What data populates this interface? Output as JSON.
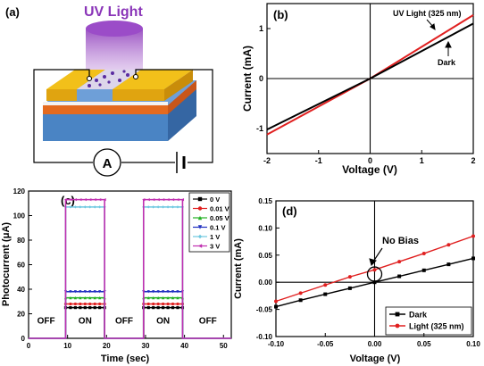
{
  "panels": {
    "a": {
      "label": "(a)",
      "light_label": "UV Light",
      "meter_label": "A",
      "colors": {
        "light": "#8a35b8",
        "gold": "#f2c01a",
        "orange": "#e46a1e",
        "blue": "#4a84c4",
        "spark": "#5a2ca0"
      }
    },
    "b": {
      "label": "(b)"
    },
    "c": {
      "label": "(c)",
      "state_labels": [
        "OFF",
        "ON",
        "OFF",
        "ON",
        "OFF"
      ]
    },
    "d": {
      "label": "(d)",
      "annotation": "No Bias"
    }
  },
  "chart_data": [
    {
      "panel": "b",
      "type": "line",
      "xlabel": "Voltage (V)",
      "ylabel": "Current (mA)",
      "xlim": [
        -2,
        2
      ],
      "ylim": [
        -1.5,
        1.5
      ],
      "xticks": [
        -2,
        -1,
        0,
        1,
        2
      ],
      "yticks": [
        -1,
        0,
        1
      ],
      "annotations": [
        "UV Light (325 nm)",
        "Dark"
      ],
      "series": [
        {
          "name": "UV Light (325 nm)",
          "color": "#e02020",
          "x": [
            -2,
            0,
            2
          ],
          "y": [
            -1.12,
            0,
            1.27
          ]
        },
        {
          "name": "Dark",
          "color": "#000000",
          "x": [
            -2,
            0,
            2
          ],
          "y": [
            -1.02,
            0,
            1.1
          ]
        }
      ]
    },
    {
      "panel": "c",
      "type": "line",
      "xlabel": "Time (sec)",
      "ylabel": "Photocurrent (μA)",
      "xlim": [
        0,
        52
      ],
      "ylim": [
        0,
        120
      ],
      "xticks": [
        0,
        10,
        20,
        30,
        40,
        50
      ],
      "yticks": [
        0,
        20,
        40,
        60,
        80,
        100,
        120
      ],
      "legend_position": "top-right",
      "on_intervals": [
        [
          9.5,
          19.5
        ],
        [
          29.5,
          39.5
        ]
      ],
      "series": [
        {
          "name": "0 V",
          "color": "#000000",
          "marker": "square",
          "on_value": 25,
          "off_value": 0
        },
        {
          "name": "0.01 V",
          "color": "#e02020",
          "marker": "circle",
          "on_value": 28,
          "off_value": 0
        },
        {
          "name": "0.05 V",
          "color": "#22b022",
          "marker": "triangle-up",
          "on_value": 33,
          "off_value": 0
        },
        {
          "name": "0.1 V",
          "color": "#2030c0",
          "marker": "triangle-down",
          "on_value": 38,
          "off_value": 0
        },
        {
          "name": "1 V",
          "color": "#6ec8e0",
          "marker": "diamond",
          "on_value": 107,
          "off_value": 0
        },
        {
          "name": "3 V",
          "color": "#c030b0",
          "marker": "triangle-left",
          "on_value": 113,
          "off_value": 0
        }
      ]
    },
    {
      "panel": "d",
      "type": "line",
      "xlabel": "Voltage (V)",
      "ylabel": "Current (mA)",
      "xlim": [
        -0.1,
        0.1
      ],
      "ylim": [
        -0.1,
        0.15
      ],
      "xticks": [
        -0.1,
        -0.05,
        0.0,
        0.05,
        0.1
      ],
      "yticks": [
        -0.1,
        -0.05,
        0.0,
        0.05,
        0.1,
        0.15
      ],
      "legend_position": "bottom-right",
      "series": [
        {
          "name": "Dark",
          "color": "#000000",
          "marker": "square",
          "x": [
            -0.1,
            -0.075,
            -0.05,
            -0.025,
            0,
            0.025,
            0.05,
            0.075,
            0.1
          ],
          "y": [
            -0.045,
            -0.033,
            -0.022,
            -0.011,
            0.0,
            0.011,
            0.022,
            0.033,
            0.044
          ]
        },
        {
          "name": "Light (325 nm)",
          "color": "#e02020",
          "marker": "circle",
          "x": [
            -0.1,
            -0.075,
            -0.05,
            -0.025,
            0,
            0.025,
            0.05,
            0.075,
            0.1
          ],
          "y": [
            -0.035,
            -0.02,
            -0.005,
            0.01,
            0.023,
            0.038,
            0.053,
            0.069,
            0.085
          ]
        }
      ]
    }
  ]
}
